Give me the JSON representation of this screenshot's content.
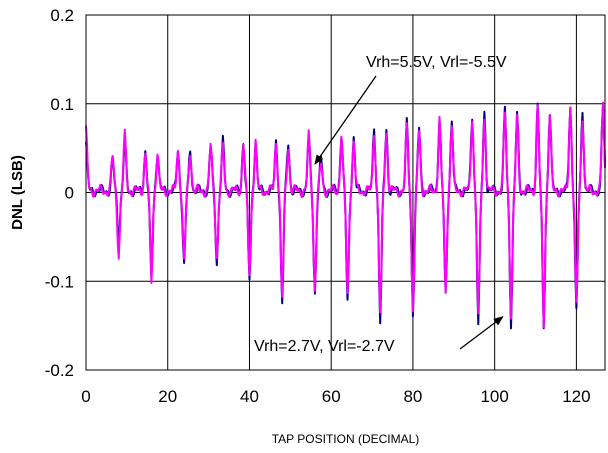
{
  "chart_data": {
    "type": "line",
    "title": "",
    "xlabel": "TAP POSITION (DECIMAL)",
    "ylabel": "DNL (LSB)",
    "xlim": [
      0,
      127
    ],
    "ylim": [
      -0.2,
      0.2
    ],
    "xticks": [
      0,
      20,
      40,
      60,
      80,
      100,
      120
    ],
    "xtick_labels": [
      "0",
      "20",
      "40",
      "60",
      "80",
      "100",
      "120"
    ],
    "yticks": [
      0.2,
      0.1,
      0,
      -0.1,
      -0.2
    ],
    "ytick_labels": [
      "0.2",
      "0.1",
      "0",
      "-0.1",
      "-0.2"
    ],
    "grid": true,
    "legend": "none",
    "series": [
      {
        "name": "Vrh=2.7V, Vrl=-2.7V",
        "color": "#000080",
        "glitches": [
          {
            "x": 0,
            "y": 0.055
          },
          {
            "x": 6.5,
            "y": 0.035
          },
          {
            "x": 8,
            "y": -0.055
          },
          {
            "x": 9.5,
            "y": 0.055
          },
          {
            "x": 14.5,
            "y": 0.045
          },
          {
            "x": 16,
            "y": -0.1
          },
          {
            "x": 17.5,
            "y": 0.045
          },
          {
            "x": 22.5,
            "y": 0.045
          },
          {
            "x": 24,
            "y": -0.085
          },
          {
            "x": 25.5,
            "y": 0.045
          },
          {
            "x": 30.5,
            "y": 0.05
          },
          {
            "x": 32,
            "y": -0.08
          },
          {
            "x": 33.5,
            "y": 0.055
          },
          {
            "x": 38.5,
            "y": 0.055
          },
          {
            "x": 40,
            "y": -0.1
          },
          {
            "x": 41.5,
            "y": 0.055
          },
          {
            "x": 46.5,
            "y": 0.055
          },
          {
            "x": 48,
            "y": -0.128
          },
          {
            "x": 49.5,
            "y": 0.055
          },
          {
            "x": 54.5,
            "y": 0.06
          },
          {
            "x": 56,
            "y": -0.115
          },
          {
            "x": 57.5,
            "y": 0.035
          },
          {
            "x": 62.5,
            "y": 0.065
          },
          {
            "x": 64,
            "y": -0.125
          },
          {
            "x": 65.5,
            "y": 0.06
          },
          {
            "x": 70.5,
            "y": 0.07
          },
          {
            "x": 72,
            "y": -0.148
          },
          {
            "x": 73.5,
            "y": 0.07
          },
          {
            "x": 78.5,
            "y": 0.075
          },
          {
            "x": 80,
            "y": -0.138
          },
          {
            "x": 81.5,
            "y": 0.07
          },
          {
            "x": 86.5,
            "y": 0.082
          },
          {
            "x": 88,
            "y": -0.12
          },
          {
            "x": 89.5,
            "y": 0.08
          },
          {
            "x": 94.5,
            "y": 0.085
          },
          {
            "x": 96,
            "y": -0.152
          },
          {
            "x": 97.5,
            "y": 0.088
          },
          {
            "x": 102.5,
            "y": 0.09
          },
          {
            "x": 104,
            "y": -0.148
          },
          {
            "x": 105.5,
            "y": 0.085
          },
          {
            "x": 110.5,
            "y": 0.097
          },
          {
            "x": 112,
            "y": -0.157
          },
          {
            "x": 113.5,
            "y": 0.09
          },
          {
            "x": 118.5,
            "y": 0.097
          },
          {
            "x": 120,
            "y": -0.138
          },
          {
            "x": 121.5,
            "y": 0.09
          },
          {
            "x": 126.5,
            "y": 0.095
          }
        ]
      },
      {
        "name": "Vrh=5.5V, Vrl=-5.5V",
        "color": "#ff00ff",
        "glitches": [
          {
            "x": 0,
            "y": 0.068
          },
          {
            "x": 6.5,
            "y": 0.038
          },
          {
            "x": 8,
            "y": -0.072
          },
          {
            "x": 9.5,
            "y": 0.062
          },
          {
            "x": 14.5,
            "y": 0.042
          },
          {
            "x": 16,
            "y": -0.102
          },
          {
            "x": 17.5,
            "y": 0.042
          },
          {
            "x": 22.5,
            "y": 0.045
          },
          {
            "x": 24,
            "y": -0.08
          },
          {
            "x": 25.5,
            "y": 0.045
          },
          {
            "x": 30.5,
            "y": 0.05
          },
          {
            "x": 32,
            "y": -0.075
          },
          {
            "x": 33.5,
            "y": 0.05
          },
          {
            "x": 38.5,
            "y": 0.055
          },
          {
            "x": 40,
            "y": -0.095
          },
          {
            "x": 41.5,
            "y": 0.055
          },
          {
            "x": 46.5,
            "y": 0.055
          },
          {
            "x": 48,
            "y": -0.12
          },
          {
            "x": 49.5,
            "y": 0.05
          },
          {
            "x": 54.5,
            "y": 0.062
          },
          {
            "x": 56,
            "y": -0.11
          },
          {
            "x": 57.5,
            "y": 0.03
          },
          {
            "x": 62.5,
            "y": 0.062
          },
          {
            "x": 64,
            "y": -0.118
          },
          {
            "x": 65.5,
            "y": 0.055
          },
          {
            "x": 70.5,
            "y": 0.068
          },
          {
            "x": 72,
            "y": -0.14
          },
          {
            "x": 73.5,
            "y": 0.065
          },
          {
            "x": 78.5,
            "y": 0.072
          },
          {
            "x": 80,
            "y": -0.13
          },
          {
            "x": 81.5,
            "y": 0.065
          },
          {
            "x": 86.5,
            "y": 0.08
          },
          {
            "x": 88,
            "y": -0.115
          },
          {
            "x": 89.5,
            "y": 0.075
          },
          {
            "x": 94.5,
            "y": 0.083
          },
          {
            "x": 96,
            "y": -0.145
          },
          {
            "x": 97.5,
            "y": 0.083
          },
          {
            "x": 102.5,
            "y": 0.088
          },
          {
            "x": 104,
            "y": -0.14
          },
          {
            "x": 105.5,
            "y": 0.08
          },
          {
            "x": 110.5,
            "y": 0.094
          },
          {
            "x": 112,
            "y": -0.15
          },
          {
            "x": 113.5,
            "y": 0.085
          },
          {
            "x": 118.5,
            "y": 0.095
          },
          {
            "x": 120,
            "y": -0.13
          },
          {
            "x": 121.5,
            "y": 0.085
          },
          {
            "x": 126.5,
            "y": 0.098
          }
        ]
      }
    ],
    "annotations": [
      {
        "text": "Vrh=5.5V, Vrl=-5.5V",
        "arrow_to": {
          "x": 56,
          "y": 0.032
        }
      },
      {
        "text": "Vrh=2.7V, Vrl=-2.7V",
        "arrow_to": {
          "x": 102,
          "y": -0.14
        }
      }
    ]
  }
}
